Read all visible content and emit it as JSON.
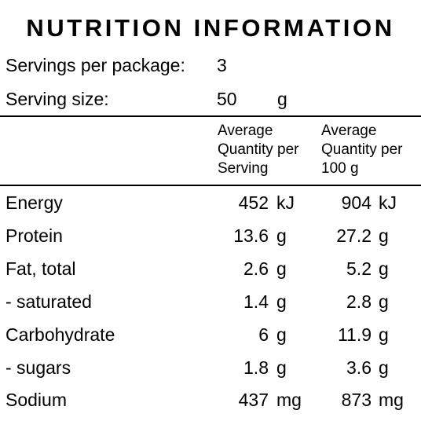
{
  "panel": {
    "title": "NUTRITION INFORMATION",
    "servings_per_package": {
      "label": "Servings per package:",
      "value": "3"
    },
    "serving_size": {
      "label": "Serving size:",
      "value": "50",
      "unit": "g"
    },
    "column_headers": {
      "per_serving": "Average Quantity per Serving",
      "per_100g": "Average Quantity per 100 g"
    },
    "rows": [
      {
        "name": "Energy",
        "per_serving": "452",
        "per_serving_unit": "kJ",
        "per_100g": "904",
        "per_100g_unit": "kJ"
      },
      {
        "name": "Protein",
        "per_serving": "13.6",
        "per_serving_unit": "g",
        "per_100g": "27.2",
        "per_100g_unit": "g"
      },
      {
        "name": "Fat, total",
        "per_serving": "2.6",
        "per_serving_unit": "g",
        "per_100g": "5.2",
        "per_100g_unit": "g"
      },
      {
        "name": "- saturated",
        "per_serving": "1.4",
        "per_serving_unit": "g",
        "per_100g": "2.8",
        "per_100g_unit": "g"
      },
      {
        "name": "Carbohydrate",
        "per_serving": "6",
        "per_serving_unit": "g",
        "per_100g": "11.9",
        "per_100g_unit": "g"
      },
      {
        "name": "- sugars",
        "per_serving": "1.8",
        "per_serving_unit": "g",
        "per_100g": "3.6",
        "per_100g_unit": "g"
      },
      {
        "name": "Sodium",
        "per_serving": "437",
        "per_serving_unit": "mg",
        "per_100g": "873",
        "per_100g_unit": "mg"
      }
    ]
  }
}
